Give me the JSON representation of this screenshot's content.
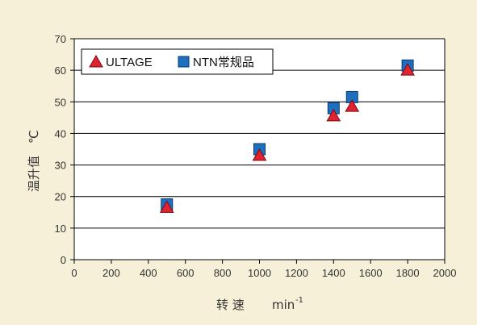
{
  "chart_data": {
    "type": "scatter",
    "title": "",
    "xlabel": "转 速",
    "xlabel_unit": "min",
    "xlabel_unit_sup": "-1",
    "ylabel": "温升值",
    "ylabel_unit": "℃",
    "xlim": [
      0,
      2000
    ],
    "ylim": [
      0,
      70
    ],
    "x_ticks": [
      "0",
      "200",
      "400",
      "600",
      "800",
      "1000",
      "1200",
      "1400",
      "1600",
      "1800",
      "2000"
    ],
    "y_ticks": [
      "0",
      "10",
      "20",
      "30",
      "40",
      "50",
      "60",
      "70"
    ],
    "grid": "horizontal",
    "legend_position": "top-left",
    "series": [
      {
        "name": "ULTAGE",
        "marker": "triangle",
        "color": "#e0232e",
        "x": [
          500,
          1000,
          1400,
          1500,
          1800
        ],
        "y": [
          16.5,
          33,
          45.5,
          48.5,
          60
        ]
      },
      {
        "name": "NTN常规品",
        "marker": "square",
        "color": "#1f6fbf",
        "x": [
          500,
          1000,
          1400,
          1500,
          1800
        ],
        "y": [
          17.5,
          35,
          48,
          51.5,
          61.5
        ]
      }
    ]
  },
  "colors": {
    "background": "#f6f0d8",
    "plot_area": "#ffffff",
    "gridline": "#000000"
  }
}
